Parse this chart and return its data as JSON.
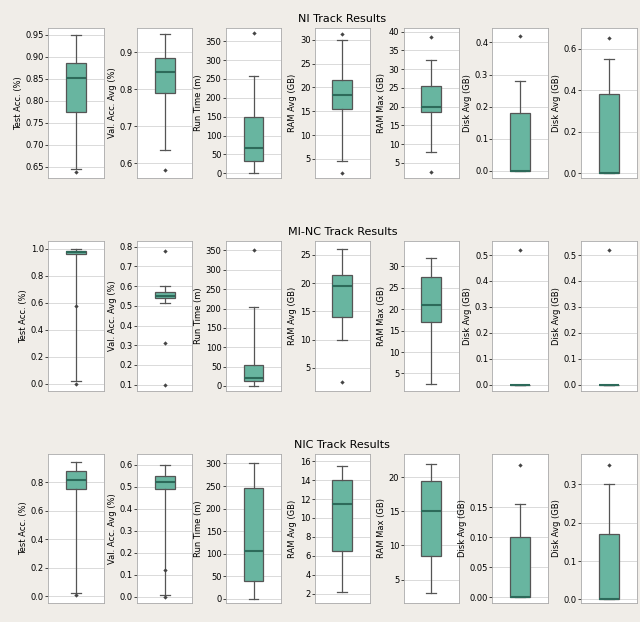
{
  "tracks": [
    "NI Track Results",
    "MI-NC Track Results",
    "NIC Track Results"
  ],
  "box_color": "#68b5a0",
  "median_color": "#2d6a5a",
  "flier_color": "#444444",
  "whisker_color": "#555555",
  "cap_color": "#555555",
  "background_color": "#f0ede8",
  "plot_bg_color": "#ffffff",
  "grid_color": "#cccccc",
  "NI": {
    "cols": [
      {
        "key": "Test Acc. (%)",
        "whislo": 0.645,
        "q1": 0.775,
        "med": 0.852,
        "q3": 0.885,
        "whishi": 0.95,
        "fliers": [
          0.638
        ],
        "yticks": [
          0.65,
          0.7,
          0.75,
          0.8,
          0.85,
          0.9,
          0.95
        ],
        "ylim": [
          0.625,
          0.965
        ],
        "ylabel": "Test Acc. (%)"
      },
      {
        "key": "Val. Acc. Avg (%)",
        "whislo": 0.635,
        "q1": 0.79,
        "med": 0.845,
        "q3": 0.885,
        "whishi": 0.948,
        "fliers": [
          0.582
        ],
        "yticks": [
          0.6,
          0.7,
          0.8,
          0.9
        ],
        "ylim": [
          0.56,
          0.965
        ],
        "ylabel": "Val. Acc. Avg (%)"
      },
      {
        "key": "Run Time (m)",
        "whislo": 0.0,
        "q1": 32.0,
        "med": 68.0,
        "q3": 150.0,
        "whishi": 258.0,
        "fliers": [
          372.0
        ],
        "yticks": [
          0,
          50,
          100,
          150,
          200,
          250,
          300,
          350
        ],
        "ylim": [
          -12,
          385
        ],
        "ylabel": "Run Time (m)"
      },
      {
        "key": "RAM Avg (GB)",
        "whislo": 4.5,
        "q1": 15.5,
        "med": 18.5,
        "q3": 21.5,
        "whishi": 30.0,
        "fliers": [
          2.0,
          31.2
        ],
        "yticks": [
          5,
          10,
          15,
          20,
          25,
          30
        ],
        "ylim": [
          1.0,
          32.5
        ],
        "ylabel": "RAM Avg (GB)"
      },
      {
        "key": "RAM Max (GB)",
        "whislo": 8.0,
        "q1": 18.5,
        "med": 20.0,
        "q3": 25.5,
        "whishi": 32.5,
        "fliers": [
          2.5,
          38.5
        ],
        "yticks": [
          5,
          10,
          15,
          20,
          25,
          30,
          35,
          40
        ],
        "ylim": [
          1.0,
          41.0
        ],
        "ylabel": "RAM Max (GB)"
      },
      {
        "key": "Disk Avg (GB)1",
        "whislo": 0.0,
        "q1": 0.0,
        "med": 0.0,
        "q3": 0.18,
        "whishi": 0.28,
        "fliers": [
          0.42
        ],
        "yticks": [
          0.0,
          0.1,
          0.2,
          0.3,
          0.4
        ],
        "ylim": [
          -0.022,
          0.445
        ],
        "ylabel": "Disk Avg (GB)"
      },
      {
        "key": "Disk Avg (GB)2",
        "whislo": 0.0,
        "q1": 0.0,
        "med": 0.0,
        "q3": 0.38,
        "whishi": 0.55,
        "fliers": [
          0.65
        ],
        "yticks": [
          0.0,
          0.2,
          0.4,
          0.6
        ],
        "ylim": [
          -0.022,
          0.7
        ],
        "ylabel": "Disk Avg (GB)"
      }
    ]
  },
  "MI_NC": {
    "cols": [
      {
        "key": "Test Acc. (%)",
        "whislo": 0.02,
        "q1": 0.96,
        "med": 0.975,
        "q3": 0.985,
        "whishi": 1.0,
        "fliers": [
          0.0,
          0.58
        ],
        "yticks": [
          0.0,
          0.2,
          0.4,
          0.6,
          0.8,
          1.0
        ],
        "ylim": [
          -0.05,
          1.06
        ],
        "ylabel": "Test Acc. (%)"
      },
      {
        "key": "Val. Acc. Avg (%)",
        "whislo": 0.515,
        "q1": 0.54,
        "med": 0.552,
        "q3": 0.572,
        "whishi": 0.6,
        "fliers": [
          0.1,
          0.31,
          0.78
        ],
        "yticks": [
          0.1,
          0.2,
          0.3,
          0.4,
          0.5,
          0.6,
          0.7,
          0.8
        ],
        "ylim": [
          0.07,
          0.83
        ],
        "ylabel": "Val. Acc. Avg (%)"
      },
      {
        "key": "Run Time (m)",
        "whislo": 0.0,
        "q1": 14.0,
        "med": 20.0,
        "q3": 55.0,
        "whishi": 205.0,
        "fliers": [
          352.0
        ],
        "yticks": [
          0,
          50,
          100,
          150,
          200,
          250,
          300,
          350
        ],
        "ylim": [
          -12,
          375
        ],
        "ylabel": "Run Time (m)"
      },
      {
        "key": "RAM Avg (GB)",
        "whislo": 10.0,
        "q1": 14.0,
        "med": 19.5,
        "q3": 21.5,
        "whishi": 26.0,
        "fliers": [
          2.5
        ],
        "yticks": [
          5,
          10,
          15,
          20,
          25
        ],
        "ylim": [
          1.0,
          27.5
        ],
        "ylabel": "RAM Avg (GB)"
      },
      {
        "key": "RAM Max (GB)",
        "whislo": 2.5,
        "q1": 17.0,
        "med": 21.0,
        "q3": 27.5,
        "whishi": 32.0,
        "fliers": [],
        "yticks": [
          5,
          10,
          15,
          20,
          25,
          30
        ],
        "ylim": [
          1.0,
          36.0
        ],
        "ylabel": "RAM Max (GB)"
      },
      {
        "key": "Disk Avg (GB)1",
        "whislo": 0.0,
        "q1": 0.0,
        "med": 0.0,
        "q3": 0.0,
        "whishi": 0.0,
        "fliers": [
          0.52
        ],
        "yticks": [
          0.0,
          0.1,
          0.2,
          0.3,
          0.4,
          0.5
        ],
        "ylim": [
          -0.022,
          0.555
        ],
        "ylabel": "Disk Avg (GB)"
      },
      {
        "key": "Disk Avg (GB)2",
        "whislo": 0.0,
        "q1": 0.0,
        "med": 0.0,
        "q3": 0.0,
        "whishi": 0.0,
        "fliers": [
          0.52
        ],
        "yticks": [
          0.0,
          0.1,
          0.2,
          0.3,
          0.4,
          0.5
        ],
        "ylim": [
          -0.022,
          0.555
        ],
        "ylabel": "Disk Avg (GB)"
      }
    ]
  },
  "NIC": {
    "cols": [
      {
        "key": "Test Acc. (%)",
        "whislo": 0.02,
        "q1": 0.75,
        "med": 0.812,
        "q3": 0.875,
        "whishi": 0.94,
        "fliers": [
          0.01
        ],
        "yticks": [
          0.0,
          0.2,
          0.4,
          0.6,
          0.8
        ],
        "ylim": [
          -0.05,
          1.0
        ],
        "ylabel": "Test Acc. (%)"
      },
      {
        "key": "Val. Acc. Avg (%)",
        "whislo": 0.01,
        "q1": 0.49,
        "med": 0.52,
        "q3": 0.55,
        "whishi": 0.6,
        "fliers": [
          0.0,
          0.12
        ],
        "yticks": [
          0.0,
          0.1,
          0.2,
          0.3,
          0.4,
          0.5,
          0.6
        ],
        "ylim": [
          -0.03,
          0.65
        ],
        "ylabel": "Val. Acc. Avg (%)"
      },
      {
        "key": "Run Time (m)",
        "whislo": 0.0,
        "q1": 40.0,
        "med": 105.0,
        "q3": 245.0,
        "whishi": 300.0,
        "fliers": [],
        "yticks": [
          0,
          50,
          100,
          150,
          200,
          250,
          300
        ],
        "ylim": [
          -10,
          322
        ],
        "ylabel": "Run Time (m)"
      },
      {
        "key": "RAM Avg (GB)",
        "whislo": 2.2,
        "q1": 6.5,
        "med": 11.5,
        "q3": 14.0,
        "whishi": 15.5,
        "fliers": [],
        "yticks": [
          2,
          4,
          6,
          8,
          10,
          12,
          14,
          16
        ],
        "ylim": [
          1.0,
          16.8
        ],
        "ylabel": "RAM Avg (GB)"
      },
      {
        "key": "RAM Max (GB)",
        "whislo": 3.0,
        "q1": 8.5,
        "med": 15.0,
        "q3": 19.5,
        "whishi": 22.0,
        "fliers": [],
        "yticks": [
          5,
          10,
          15,
          20
        ],
        "ylim": [
          1.5,
          23.5
        ],
        "ylabel": "RAM Max (GB)"
      },
      {
        "key": "Disk Avg (GB)1",
        "whislo": 0.0,
        "q1": 0.0,
        "med": 0.0,
        "q3": 0.1,
        "whishi": 0.155,
        "fliers": [
          0.22
        ],
        "yticks": [
          0.0,
          0.05,
          0.1,
          0.15
        ],
        "ylim": [
          -0.01,
          0.24
        ],
        "ylabel": "Disk Avg (GB)"
      },
      {
        "key": "Disk Avg (GB)2",
        "whislo": 0.0,
        "q1": 0.0,
        "med": 0.0,
        "q3": 0.17,
        "whishi": 0.3,
        "fliers": [
          0.35
        ],
        "yticks": [
          0.0,
          0.1,
          0.2,
          0.3
        ],
        "ylim": [
          -0.01,
          0.38
        ],
        "ylabel": "Disk Avg (GB)"
      }
    ]
  },
  "track_keys": [
    "NI",
    "MI_NC",
    "NIC"
  ],
  "track_titles": [
    "NI Track Results",
    "MI-NC Track Results",
    "NIC Track Results"
  ]
}
